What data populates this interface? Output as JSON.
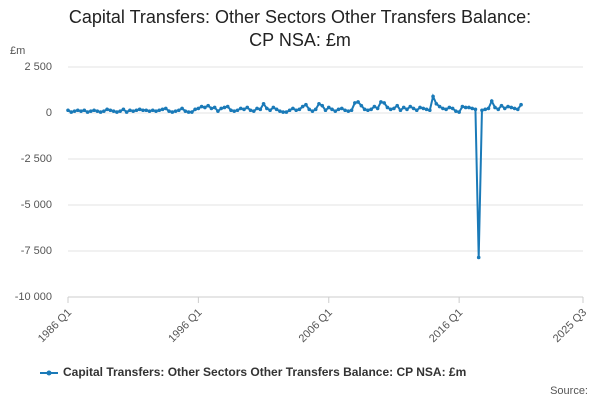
{
  "chart_data": {
    "type": "line",
    "title": "Capital Transfers: Other Sectors Other Transfers Balance: CP NSA: £m",
    "y_label": "£m",
    "source": "Source:",
    "x": [
      1986,
      1986.25,
      1986.5,
      1986.75,
      1987,
      1987.25,
      1987.5,
      1987.75,
      1988,
      1988.25,
      1988.5,
      1988.75,
      1989,
      1989.25,
      1989.5,
      1989.75,
      1990,
      1990.25,
      1990.5,
      1990.75,
      1991,
      1991.25,
      1991.5,
      1991.75,
      1992,
      1992.25,
      1992.5,
      1992.75,
      1993,
      1993.25,
      1993.5,
      1993.75,
      1994,
      1994.25,
      1994.5,
      1994.75,
      1995,
      1995.25,
      1995.5,
      1995.75,
      1996,
      1996.25,
      1996.5,
      1996.75,
      1997,
      1997.25,
      1997.5,
      1997.75,
      1998,
      1998.25,
      1998.5,
      1998.75,
      1999,
      1999.25,
      1999.5,
      1999.75,
      2000,
      2000.25,
      2000.5,
      2000.75,
      2001,
      2001.25,
      2001.5,
      2001.75,
      2002,
      2002.25,
      2002.5,
      2002.75,
      2003,
      2003.25,
      2003.5,
      2003.75,
      2004,
      2004.25,
      2004.5,
      2004.75,
      2005,
      2005.25,
      2005.5,
      2005.75,
      2006,
      2006.25,
      2006.5,
      2006.75,
      2007,
      2007.25,
      2007.5,
      2007.75,
      2008,
      2008.25,
      2008.5,
      2008.75,
      2009,
      2009.25,
      2009.5,
      2009.75,
      2010,
      2010.25,
      2010.5,
      2010.75,
      2011,
      2011.25,
      2011.5,
      2011.75,
      2012,
      2012.25,
      2012.5,
      2012.75,
      2013,
      2013.25,
      2013.5,
      2013.75,
      2014,
      2014.25,
      2014.5,
      2014.75,
      2015,
      2015.25,
      2015.5,
      2015.75,
      2016,
      2016.25,
      2016.5,
      2016.75,
      2017,
      2017.25,
      2017.5,
      2017.75,
      2018,
      2018.25,
      2018.5,
      2018.75,
      2019,
      2019.25,
      2019.5,
      2019.75,
      2020,
      2020.25,
      2020.5,
      2020.75
    ],
    "series": [
      {
        "name": "Capital Transfers: Other Sectors Other Transfers Balance: CP NSA: £m",
        "color": "#1a7ab8",
        "values": [
          150,
          50,
          100,
          150,
          100,
          150,
          50,
          100,
          150,
          100,
          50,
          100,
          200,
          150,
          100,
          50,
          100,
          200,
          50,
          150,
          100,
          150,
          200,
          150,
          150,
          100,
          150,
          100,
          150,
          200,
          250,
          100,
          50,
          100,
          150,
          250,
          100,
          50,
          50,
          200,
          250,
          350,
          300,
          400,
          250,
          300,
          100,
          250,
          300,
          350,
          150,
          100,
          150,
          250,
          200,
          300,
          150,
          100,
          250,
          200,
          500,
          250,
          150,
          300,
          200,
          100,
          50,
          50,
          150,
          250,
          150,
          200,
          350,
          450,
          200,
          100,
          200,
          500,
          400,
          150,
          300,
          200,
          100,
          200,
          250,
          150,
          100,
          150,
          550,
          600,
          400,
          200,
          150,
          200,
          350,
          250,
          600,
          550,
          300,
          200,
          250,
          400,
          150,
          300,
          200,
          350,
          250,
          150,
          300,
          250,
          200,
          150,
          900,
          500,
          350,
          250,
          200,
          300,
          250,
          100,
          50,
          350,
          300,
          300,
          250,
          200,
          -7850,
          150,
          200,
          250,
          650,
          300,
          200,
          400,
          250,
          350,
          300,
          250,
          200,
          450
        ]
      }
    ],
    "xlim": [
      1986,
      2025.5
    ],
    "xticks": [
      {
        "value": 1986,
        "label": "1986 Q1"
      },
      {
        "value": 1996,
        "label": "1996 Q1"
      },
      {
        "value": 2006,
        "label": "2006 Q1"
      },
      {
        "value": 2016,
        "label": "2016 Q1"
      },
      {
        "value": 2025.5,
        "label": "2025 Q3"
      }
    ],
    "ylim": [
      -10000,
      2500
    ],
    "yticks": [
      {
        "value": 2500,
        "label": "2 500"
      },
      0,
      {
        "value": -2500,
        "label": "-2 500"
      },
      {
        "value": -5000,
        "label": "-5 000"
      },
      {
        "value": -7500,
        "label": "-7 500"
      },
      {
        "value": -10000,
        "label": "-10 000"
      }
    ],
    "grid": true,
    "legend": "bottom"
  }
}
